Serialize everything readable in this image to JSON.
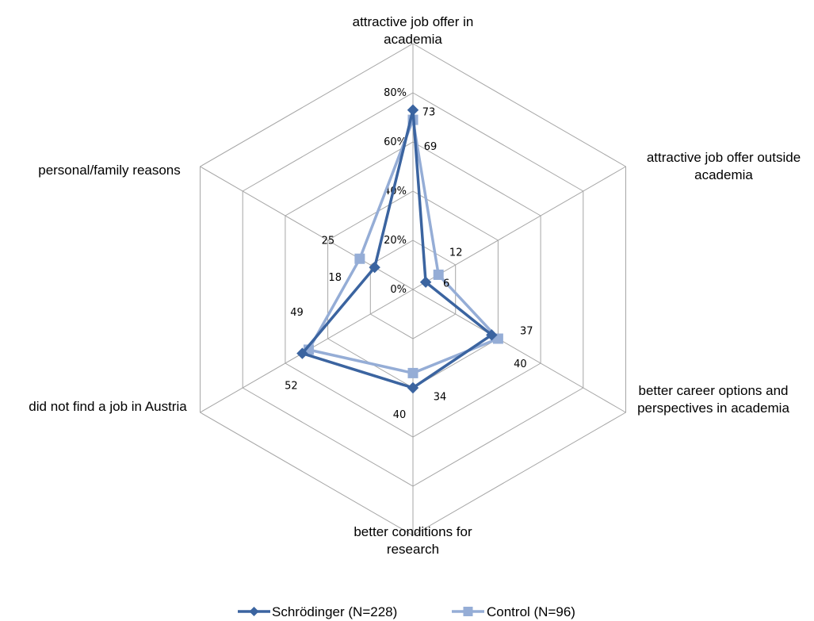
{
  "chart_data": {
    "type": "radar",
    "title": "",
    "categories": [
      "attractive job offer in academia",
      "attractive job offer outside academia",
      "better career options and perspectives in academia",
      "better conditions for research",
      "did not find a job in Austria",
      "personal/family reasons"
    ],
    "category_lines": [
      [
        "attractive job offer in",
        "academia"
      ],
      [
        "attractive job offer outside",
        "academia"
      ],
      [
        "better career options and",
        "perspectives in academia"
      ],
      [
        "better conditions for",
        "research"
      ],
      [
        "did not find a job in Austria"
      ],
      [
        "personal/family reasons"
      ]
    ],
    "scale": {
      "min": 0,
      "max": 100,
      "ticks": [
        0,
        20,
        40,
        60,
        80
      ],
      "tick_labels": [
        "0%",
        "20%",
        "40%",
        "60%",
        "80%"
      ],
      "grid": true
    },
    "series": [
      {
        "name": "Schrödinger (N=228)",
        "color": "#3B64A0",
        "marker": "diamond",
        "values": [
          73,
          6,
          37,
          40,
          52,
          18
        ],
        "labels": [
          "73",
          "6",
          "37",
          "40",
          "52",
          "18"
        ]
      },
      {
        "name": "Control (N=96)",
        "color": "#95ADD6",
        "marker": "square",
        "values": [
          69,
          12,
          40,
          34,
          49,
          25
        ],
        "labels": [
          "69",
          "12",
          "40",
          "34",
          "49",
          "25"
        ]
      }
    ],
    "legend_position": "bottom"
  }
}
